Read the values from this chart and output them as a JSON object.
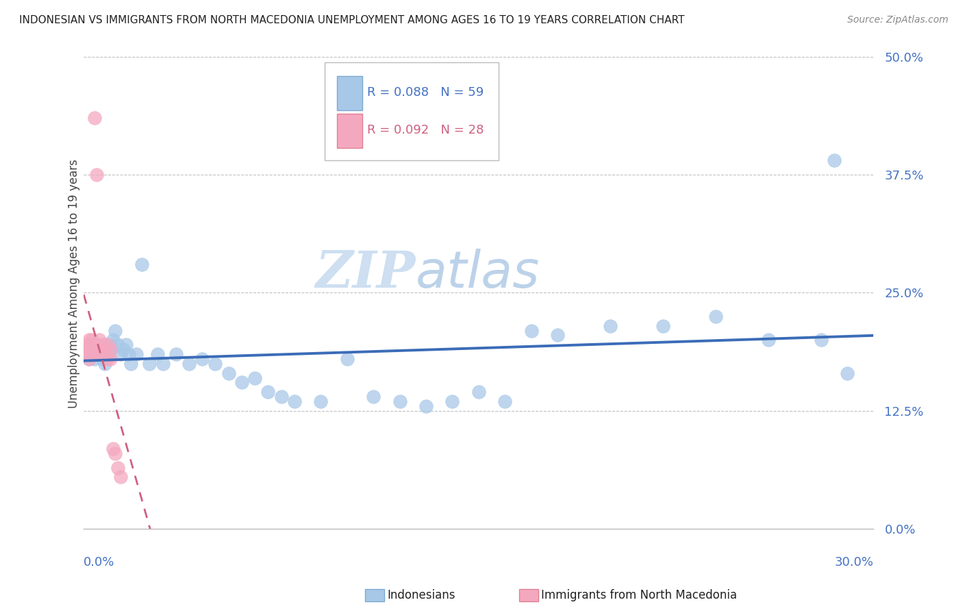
{
  "title": "INDONESIAN VS IMMIGRANTS FROM NORTH MACEDONIA UNEMPLOYMENT AMONG AGES 16 TO 19 YEARS CORRELATION CHART",
  "source": "Source: ZipAtlas.com",
  "ylabel": "Unemployment Among Ages 16 to 19 years",
  "ytick_labels": [
    "0.0%",
    "12.5%",
    "25.0%",
    "37.5%",
    "50.0%"
  ],
  "ytick_values": [
    0.0,
    0.125,
    0.25,
    0.375,
    0.5
  ],
  "xlim": [
    0.0,
    0.3
  ],
  "ylim": [
    0.0,
    0.52
  ],
  "indonesian_R": 0.088,
  "indonesian_N": 59,
  "macedonian_R": 0.092,
  "macedonian_N": 28,
  "indonesian_color": "#A8C8E8",
  "macedonian_color": "#F4A8C0",
  "indonesian_line_color": "#3B6CB7",
  "macedonian_line_color": "#D06080",
  "watermark_zip": "ZIP",
  "watermark_atlas": "atlas",
  "indo_x": [
    0.001,
    0.001,
    0.002,
    0.002,
    0.003,
    0.003,
    0.004,
    0.004,
    0.005,
    0.005,
    0.006,
    0.006,
    0.007,
    0.007,
    0.008,
    0.008,
    0.009,
    0.01,
    0.01,
    0.011,
    0.012,
    0.013,
    0.014,
    0.015,
    0.016,
    0.017,
    0.018,
    0.02,
    0.022,
    0.025,
    0.028,
    0.03,
    0.035,
    0.04,
    0.045,
    0.05,
    0.055,
    0.06,
    0.065,
    0.07,
    0.075,
    0.08,
    0.09,
    0.1,
    0.11,
    0.12,
    0.13,
    0.14,
    0.15,
    0.16,
    0.17,
    0.18,
    0.2,
    0.22,
    0.24,
    0.26,
    0.28,
    0.285,
    0.29
  ],
  "indo_y": [
    0.185,
    0.19,
    0.18,
    0.19,
    0.185,
    0.195,
    0.18,
    0.185,
    0.19,
    0.195,
    0.185,
    0.19,
    0.18,
    0.185,
    0.195,
    0.175,
    0.185,
    0.19,
    0.195,
    0.2,
    0.21,
    0.195,
    0.185,
    0.19,
    0.195,
    0.185,
    0.175,
    0.185,
    0.28,
    0.175,
    0.185,
    0.175,
    0.185,
    0.175,
    0.18,
    0.175,
    0.165,
    0.155,
    0.16,
    0.145,
    0.14,
    0.135,
    0.135,
    0.18,
    0.14,
    0.135,
    0.13,
    0.135,
    0.145,
    0.135,
    0.21,
    0.205,
    0.215,
    0.215,
    0.225,
    0.2,
    0.2,
    0.39,
    0.165
  ],
  "mac_x": [
    0.001,
    0.001,
    0.001,
    0.002,
    0.002,
    0.002,
    0.003,
    0.003,
    0.003,
    0.004,
    0.004,
    0.004,
    0.005,
    0.005,
    0.006,
    0.006,
    0.007,
    0.007,
    0.008,
    0.008,
    0.009,
    0.009,
    0.01,
    0.01,
    0.011,
    0.012,
    0.013,
    0.014
  ],
  "mac_y": [
    0.19,
    0.185,
    0.195,
    0.2,
    0.19,
    0.18,
    0.2,
    0.19,
    0.195,
    0.195,
    0.435,
    0.185,
    0.375,
    0.185,
    0.2,
    0.19,
    0.185,
    0.195,
    0.19,
    0.185,
    0.18,
    0.195,
    0.18,
    0.19,
    0.085,
    0.08,
    0.065,
    0.055
  ]
}
